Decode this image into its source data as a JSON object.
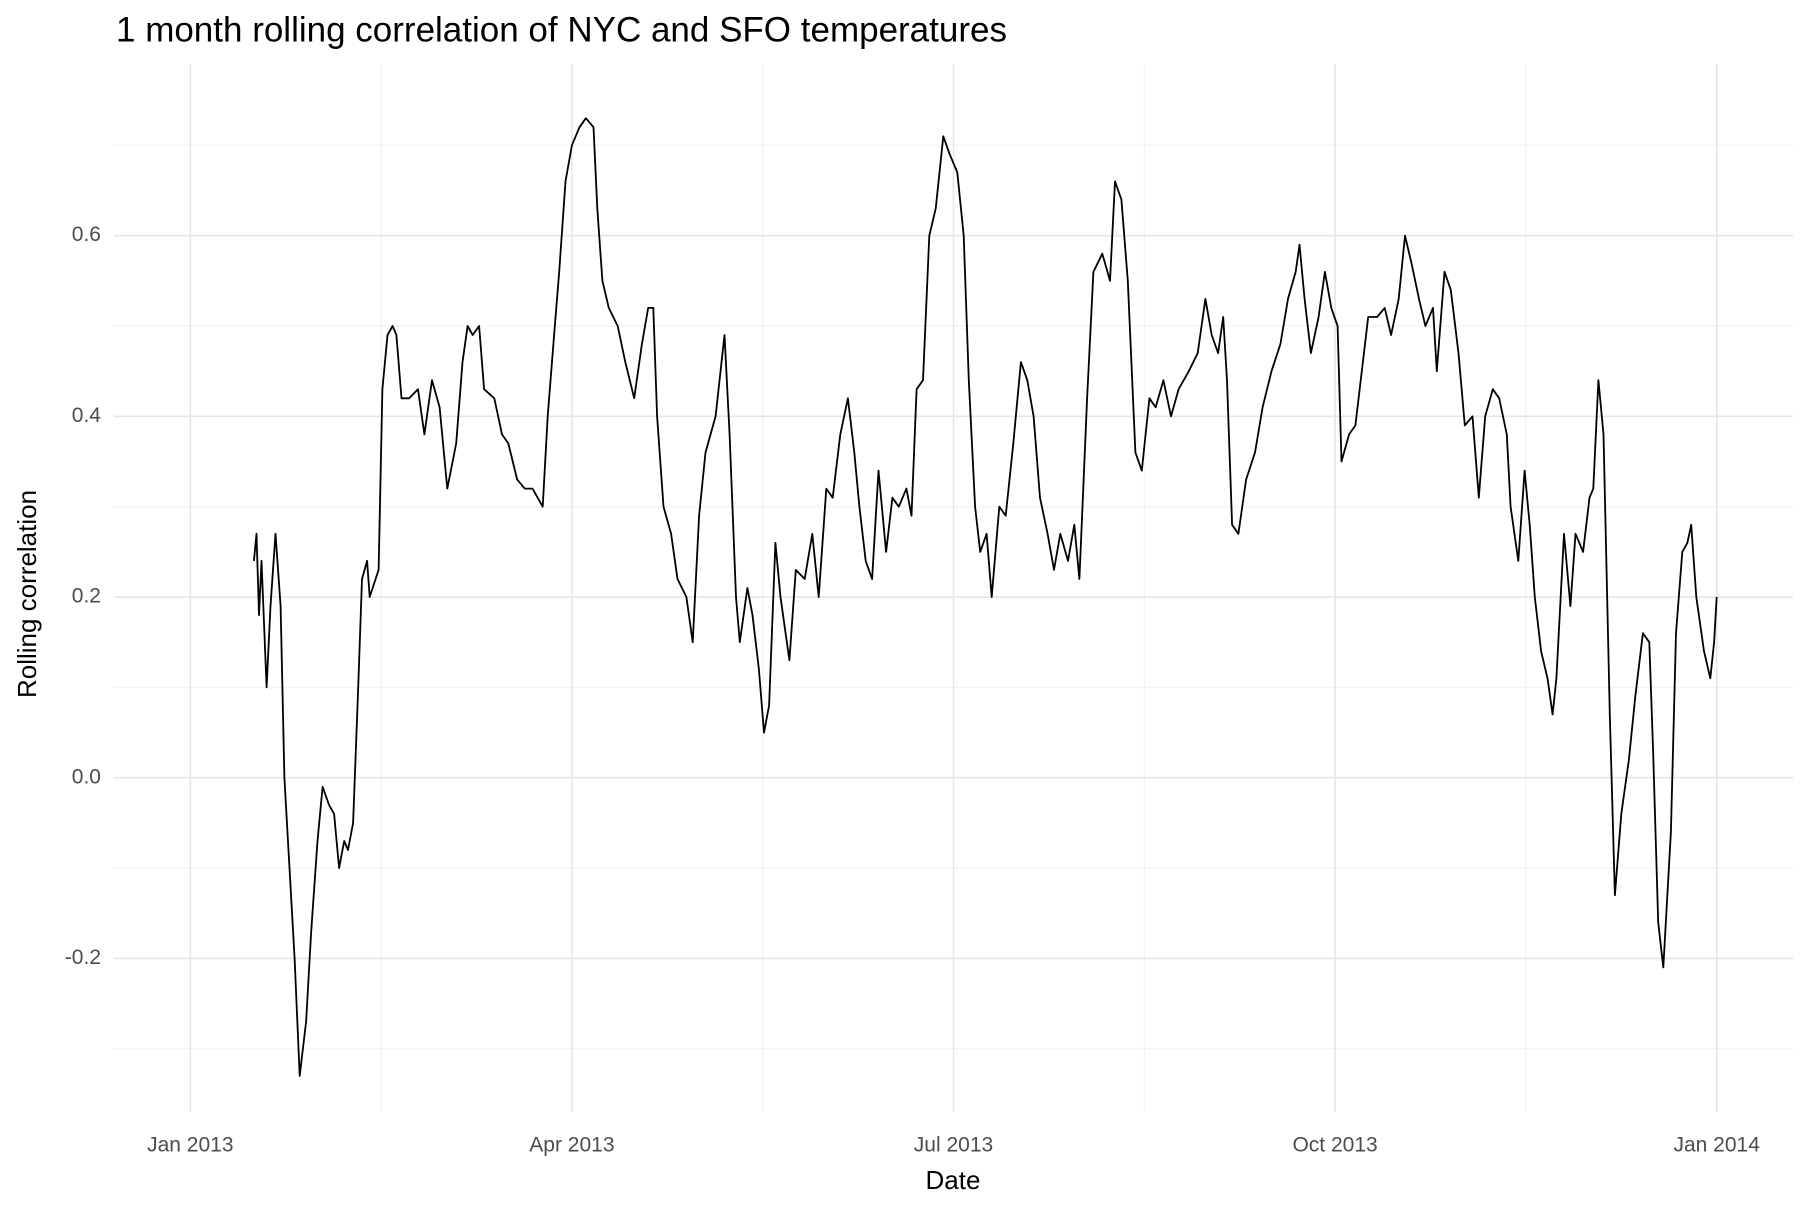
{
  "chart_data": {
    "type": "line",
    "title": "1 month rolling correlation of NYC and SFO temperatures",
    "x_label": "Date",
    "y_label": "Rolling correlation",
    "xlim": [
      -0.6,
      12.6
    ],
    "xticks": [
      {
        "value": 0,
        "label": "Jan 2013"
      },
      {
        "value": 3,
        "label": "Apr 2013"
      },
      {
        "value": 6,
        "label": "Jul 2013"
      },
      {
        "value": 9,
        "label": "Oct 2013"
      },
      {
        "value": 12,
        "label": "Jan 2014"
      }
    ],
    "minor_xticks": [
      1.5,
      4.5,
      7.5,
      10.5
    ],
    "ylim": [
      -0.37,
      0.79
    ],
    "yticks": [
      -0.2,
      {
        "value": 0,
        "label": "0.0"
      },
      0.2,
      0.4,
      0.6
    ],
    "minor_yticks": [
      -0.3,
      -0.1,
      0.1,
      0.3,
      0.5,
      0.7
    ],
    "grid": true,
    "series": [
      {
        "color": "#000000",
        "x": [
          0.5,
          0.52,
          0.54,
          0.56,
          0.6,
          0.63,
          0.67,
          0.71,
          0.74,
          0.78,
          0.82,
          0.86,
          0.91,
          0.95,
          1.0,
          1.04,
          1.09,
          1.13,
          1.17,
          1.21,
          1.24,
          1.28,
          1.32,
          1.35,
          1.39,
          1.41,
          1.48,
          1.51,
          1.55,
          1.59,
          1.62,
          1.66,
          1.72,
          1.79,
          1.84,
          1.9,
          1.96,
          2.02,
          2.09,
          2.14,
          2.18,
          2.22,
          2.27,
          2.31,
          2.39,
          2.45,
          2.5,
          2.57,
          2.63,
          2.69,
          2.77,
          2.81,
          2.86,
          2.9,
          2.95,
          3.0,
          3.06,
          3.11,
          3.17,
          3.2,
          3.24,
          3.29,
          3.36,
          3.42,
          3.49,
          3.55,
          3.6,
          3.64,
          3.67,
          3.72,
          3.78,
          3.83,
          3.9,
          3.95,
          4.0,
          4.05,
          4.13,
          4.2,
          4.24,
          4.29,
          4.32,
          4.38,
          4.42,
          4.47,
          4.51,
          4.55,
          4.6,
          4.64,
          4.71,
          4.76,
          4.83,
          4.89,
          4.94,
          5.0,
          5.05,
          5.11,
          5.17,
          5.22,
          5.26,
          5.31,
          5.36,
          5.41,
          5.47,
          5.52,
          5.57,
          5.63,
          5.67,
          5.71,
          5.76,
          5.81,
          5.86,
          5.92,
          5.97,
          6.03,
          6.08,
          6.12,
          6.17,
          6.21,
          6.26,
          6.3,
          6.36,
          6.41,
          6.47,
          6.53,
          6.58,
          6.63,
          6.68,
          6.74,
          6.79,
          6.84,
          6.9,
          6.95,
          6.99,
          7.05,
          7.1,
          7.17,
          7.23,
          7.27,
          7.32,
          7.37,
          7.43,
          7.48,
          7.54,
          7.59,
          7.65,
          7.71,
          7.77,
          7.85,
          7.92,
          7.98,
          8.03,
          8.08,
          8.12,
          8.15,
          8.19,
          8.24,
          8.3,
          8.37,
          8.43,
          8.5,
          8.57,
          8.63,
          8.69,
          8.72,
          8.76,
          8.81,
          8.87,
          8.92,
          8.97,
          9.02,
          9.05,
          9.11,
          9.16,
          9.21,
          9.26,
          9.33,
          9.39,
          9.44,
          9.5,
          9.55,
          9.6,
          9.66,
          9.71,
          9.77,
          9.8,
          9.86,
          9.91,
          9.97,
          10.02,
          10.08,
          10.13,
          10.18,
          10.24,
          10.29,
          10.35,
          10.38,
          10.44,
          10.49,
          10.53,
          10.57,
          10.62,
          10.67,
          10.71,
          10.74,
          10.8,
          10.85,
          10.89,
          10.95,
          11.0,
          11.03,
          11.07,
          11.11,
          11.16,
          11.2,
          11.25,
          11.31,
          11.36,
          11.42,
          11.47,
          11.5,
          11.54,
          11.58,
          11.64,
          11.68,
          11.73,
          11.77,
          11.8,
          11.84,
          11.9,
          11.95,
          11.98,
          12.0
        ],
        "values": [
          0.24,
          0.27,
          0.18,
          0.24,
          0.1,
          0.19,
          0.27,
          0.19,
          0.0,
          -0.1,
          -0.2,
          -0.33,
          -0.27,
          -0.17,
          -0.07,
          -0.01,
          -0.03,
          -0.04,
          -0.1,
          -0.07,
          -0.08,
          -0.05,
          0.1,
          0.22,
          0.24,
          0.2,
          0.23,
          0.43,
          0.49,
          0.5,
          0.49,
          0.42,
          0.42,
          0.43,
          0.38,
          0.44,
          0.41,
          0.32,
          0.37,
          0.46,
          0.5,
          0.49,
          0.5,
          0.43,
          0.42,
          0.38,
          0.37,
          0.33,
          0.32,
          0.32,
          0.3,
          0.4,
          0.49,
          0.56,
          0.66,
          0.7,
          0.72,
          0.73,
          0.72,
          0.63,
          0.55,
          0.52,
          0.5,
          0.46,
          0.42,
          0.48,
          0.52,
          0.52,
          0.4,
          0.3,
          0.27,
          0.22,
          0.2,
          0.15,
          0.29,
          0.36,
          0.4,
          0.49,
          0.38,
          0.2,
          0.15,
          0.21,
          0.18,
          0.12,
          0.05,
          0.08,
          0.26,
          0.2,
          0.13,
          0.23,
          0.22,
          0.27,
          0.2,
          0.32,
          0.31,
          0.38,
          0.42,
          0.36,
          0.3,
          0.24,
          0.22,
          0.34,
          0.25,
          0.31,
          0.3,
          0.32,
          0.29,
          0.43,
          0.44,
          0.6,
          0.63,
          0.71,
          0.69,
          0.67,
          0.6,
          0.44,
          0.3,
          0.25,
          0.27,
          0.2,
          0.3,
          0.29,
          0.37,
          0.46,
          0.44,
          0.4,
          0.31,
          0.27,
          0.23,
          0.27,
          0.24,
          0.28,
          0.22,
          0.42,
          0.56,
          0.58,
          0.55,
          0.66,
          0.64,
          0.55,
          0.36,
          0.34,
          0.42,
          0.41,
          0.44,
          0.4,
          0.43,
          0.45,
          0.47,
          0.53,
          0.49,
          0.47,
          0.51,
          0.44,
          0.28,
          0.27,
          0.33,
          0.36,
          0.41,
          0.45,
          0.48,
          0.53,
          0.56,
          0.59,
          0.53,
          0.47,
          0.51,
          0.56,
          0.52,
          0.5,
          0.35,
          0.38,
          0.39,
          0.45,
          0.51,
          0.51,
          0.52,
          0.49,
          0.53,
          0.6,
          0.57,
          0.53,
          0.5,
          0.52,
          0.45,
          0.56,
          0.54,
          0.47,
          0.39,
          0.4,
          0.31,
          0.4,
          0.43,
          0.42,
          0.38,
          0.3,
          0.24,
          0.34,
          0.28,
          0.2,
          0.14,
          0.11,
          0.07,
          0.11,
          0.27,
          0.19,
          0.27,
          0.25,
          0.31,
          0.32,
          0.44,
          0.38,
          0.07,
          -0.13,
          -0.04,
          0.02,
          0.09,
          0.16,
          0.15,
          0.03,
          -0.16,
          -0.21,
          -0.06,
          0.16,
          0.25,
          0.26,
          0.28,
          0.2,
          0.14,
          0.11,
          0.15,
          0.2
        ]
      }
    ]
  }
}
